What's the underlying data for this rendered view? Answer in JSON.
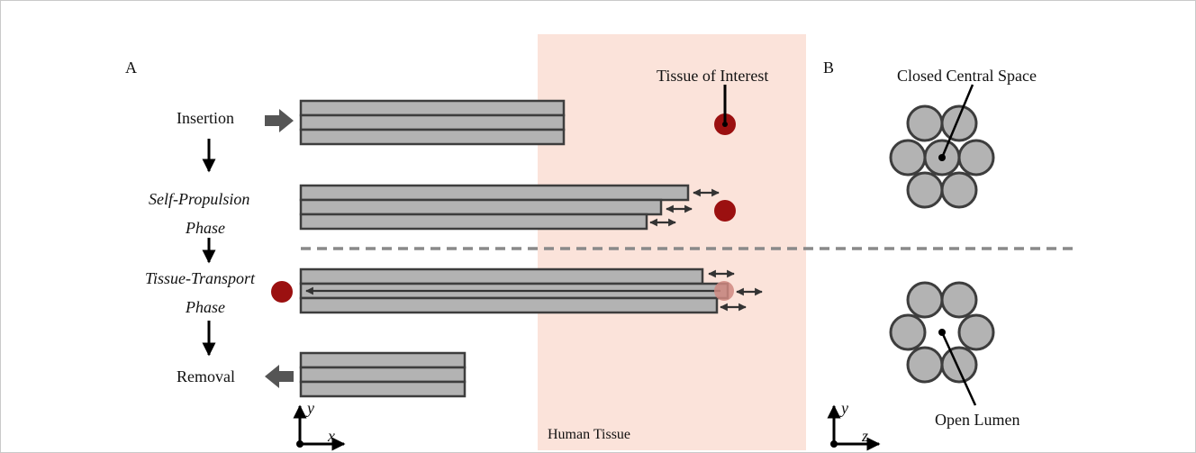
{
  "panels": {
    "a": "A",
    "b": "B"
  },
  "steps": {
    "insertion": "Insertion",
    "self_propulsion_1": "Self-Propulsion",
    "self_propulsion_2": "Phase",
    "tissue_transport_1": "Tissue-Transport",
    "tissue_transport_2": "Phase",
    "removal": "Removal"
  },
  "labels": {
    "tissue_of_interest": "Tissue of Interest",
    "human_tissue": "Human Tissue",
    "closed_central_space": "Closed Central Space",
    "open_lumen": "Open Lumen"
  },
  "axes": {
    "left": {
      "h": "x",
      "v": "y"
    },
    "right": {
      "h": "z",
      "v": "y"
    }
  },
  "colors": {
    "tissue_region": "#fbe3da",
    "needle_fill": "#b3b3b3",
    "needle_stroke": "#3d3d3d",
    "tissue_target": "#9b1010",
    "tissue_target_translucent": "#cf8880",
    "arrow": "#444444",
    "divider": "#8a8a8a"
  }
}
